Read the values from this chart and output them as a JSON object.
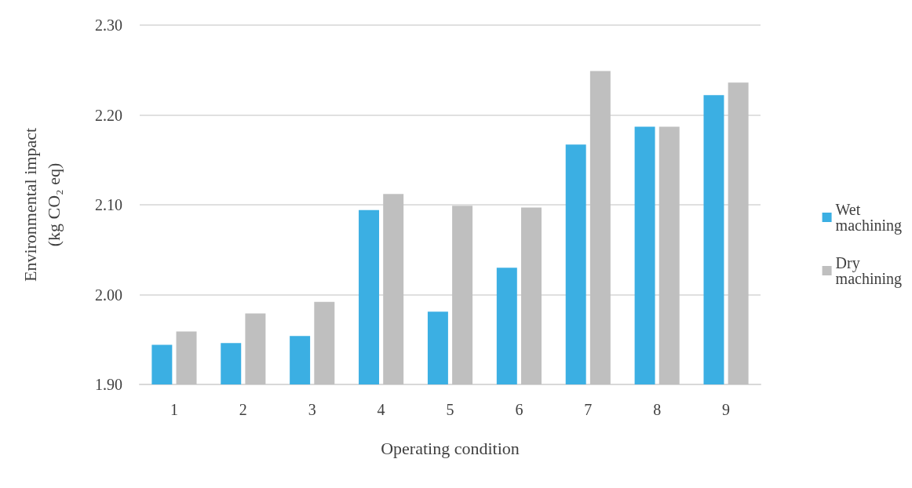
{
  "chart_data": {
    "type": "bar",
    "xlabel": "Operating condition",
    "ylabel": "Environmental impact\n(kg CO₂ eq)",
    "categories": [
      "1",
      "2",
      "3",
      "4",
      "5",
      "6",
      "7",
      "8",
      "9"
    ],
    "series": [
      {
        "name": "Wet machining",
        "color": "#3bafe3",
        "values": [
          1.944,
          1.946,
          1.954,
          2.094,
          1.981,
          2.03,
          2.167,
          2.187,
          2.222
        ]
      },
      {
        "name": "Dry machining",
        "color": "#bfbfbf",
        "values": [
          1.959,
          1.979,
          1.992,
          2.112,
          2.099,
          2.097,
          2.249,
          2.187,
          2.236
        ]
      }
    ],
    "ylim": [
      1.9,
      2.3
    ],
    "yticks": [
      {
        "value": 1.9,
        "label": "1.90"
      },
      {
        "value": 2.0,
        "label": "2.00"
      },
      {
        "value": 2.1,
        "label": "2.10"
      },
      {
        "value": 2.2,
        "label": "2.20"
      },
      {
        "value": 2.3,
        "label": "2.30"
      }
    ],
    "grid": "y",
    "legend": "right"
  }
}
